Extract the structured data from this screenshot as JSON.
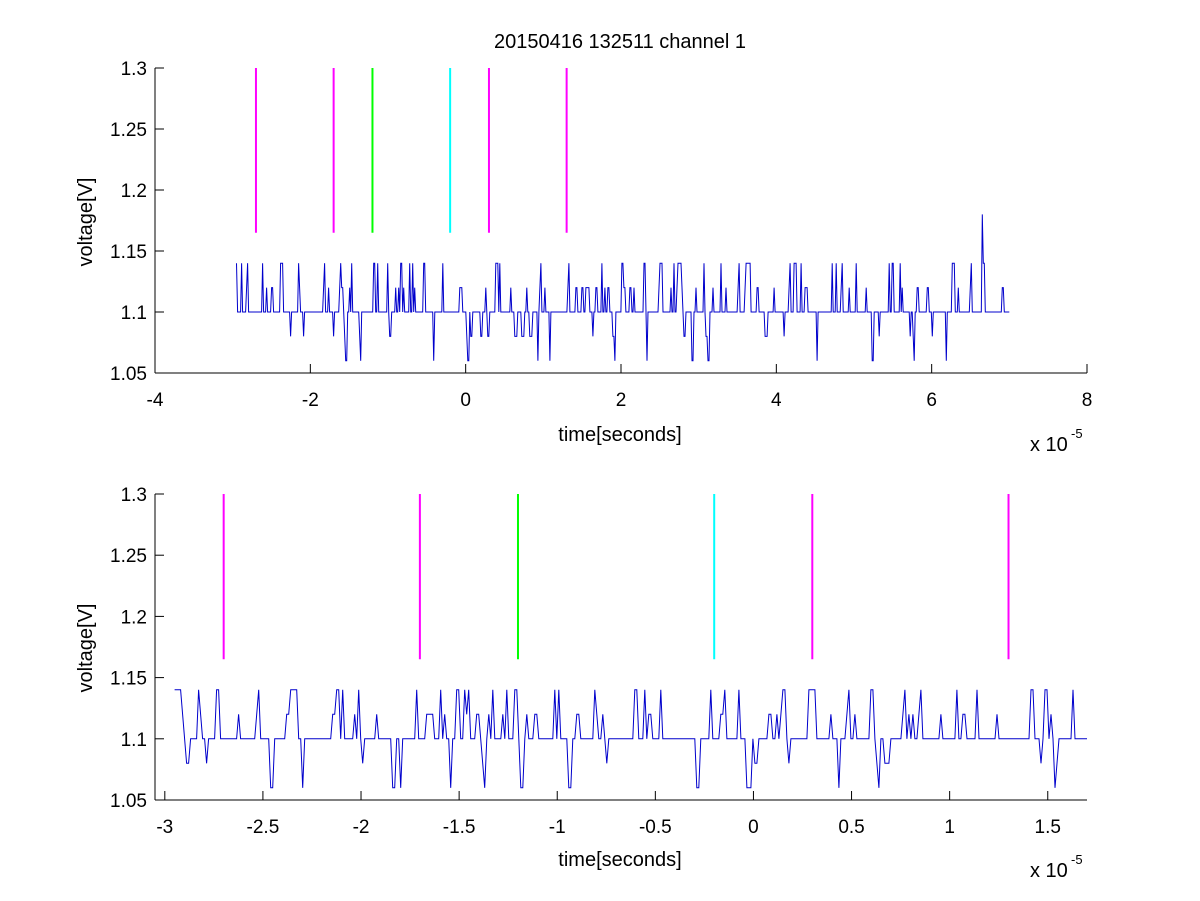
{
  "chart_data": [
    {
      "type": "line",
      "title": "20150416 132511 channel 1",
      "xlabel": "time[seconds]",
      "ylabel": "voltage[V]",
      "exponent_base": "x 10",
      "exponent_power": "-5",
      "xlim": [
        -4,
        8
      ],
      "ylim": [
        1.05,
        1.3
      ],
      "xticks": [
        "-4",
        "-2",
        "0",
        "2",
        "4",
        "6",
        "8"
      ],
      "xtick_values": [
        -4,
        -2,
        0,
        2,
        4,
        6,
        8
      ],
      "yticks": [
        "1.05",
        "1.1",
        "1.15",
        "1.2",
        "1.25",
        "1.3"
      ],
      "ytick_values": [
        1.05,
        1.1,
        1.15,
        1.2,
        1.25,
        1.3
      ],
      "grid": false,
      "signal_color": "#0000CC",
      "signal": {
        "x_start": -2.95,
        "x_end": 7.0,
        "spike_x": 6.65,
        "spike_y": 1.18,
        "levels": [
          1.06,
          1.08,
          1.1,
          1.12,
          1.14
        ]
      },
      "markers": [
        {
          "x": -2.7,
          "y0": 1.165,
          "y1": 1.3,
          "color": "#FF00FF"
        },
        {
          "x": -1.7,
          "y0": 1.165,
          "y1": 1.3,
          "color": "#FF00FF"
        },
        {
          "x": -1.2,
          "y0": 1.165,
          "y1": 1.3,
          "color": "#00FF00"
        },
        {
          "x": -0.2,
          "y0": 1.165,
          "y1": 1.3,
          "color": "#00FFFF"
        },
        {
          "x": 0.3,
          "y0": 1.165,
          "y1": 1.3,
          "color": "#FF00FF"
        },
        {
          "x": 1.3,
          "y0": 1.165,
          "y1": 1.3,
          "color": "#FF00FF"
        }
      ]
    },
    {
      "type": "line",
      "title": "",
      "xlabel": "time[seconds]",
      "ylabel": "voltage[V]",
      "exponent_base": "x 10",
      "exponent_power": "-5",
      "xlim": [
        -3.05,
        1.7
      ],
      "ylim": [
        1.05,
        1.3
      ],
      "xticks": [
        "-3",
        "-2.5",
        "-2",
        "-1.5",
        "-1",
        "-0.5",
        "0",
        "0.5",
        "1",
        "1.5"
      ],
      "xtick_values": [
        -3,
        -2.5,
        -2,
        -1.5,
        -1,
        -0.5,
        0,
        0.5,
        1,
        1.5
      ],
      "yticks": [
        "1.05",
        "1.1",
        "1.15",
        "1.2",
        "1.25",
        "1.3"
      ],
      "ytick_values": [
        1.05,
        1.1,
        1.15,
        1.2,
        1.25,
        1.3
      ],
      "grid": false,
      "signal_color": "#0000CC",
      "signal": {
        "x_start": -2.95,
        "x_end": 1.7,
        "levels": [
          1.06,
          1.08,
          1.1,
          1.12,
          1.14
        ]
      },
      "markers": [
        {
          "x": -2.7,
          "y0": 1.165,
          "y1": 1.3,
          "color": "#FF00FF"
        },
        {
          "x": -1.7,
          "y0": 1.165,
          "y1": 1.3,
          "color": "#FF00FF"
        },
        {
          "x": -1.2,
          "y0": 1.165,
          "y1": 1.3,
          "color": "#00FF00"
        },
        {
          "x": -0.2,
          "y0": 1.165,
          "y1": 1.3,
          "color": "#00FFFF"
        },
        {
          "x": 0.3,
          "y0": 1.165,
          "y1": 1.3,
          "color": "#FF00FF"
        },
        {
          "x": 1.3,
          "y0": 1.165,
          "y1": 1.3,
          "color": "#FF00FF"
        }
      ]
    }
  ]
}
